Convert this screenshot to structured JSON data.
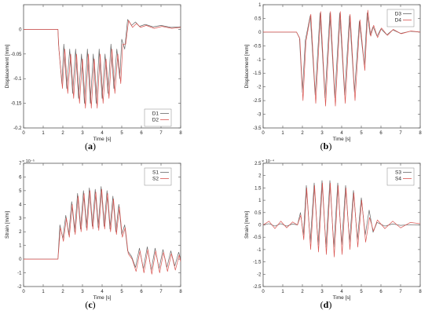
{
  "chart_data": [
    {
      "type": "line",
      "panel_label": "(a)",
      "panel_letter": "a",
      "xlabel": "Time [s]",
      "ylabel": "Displacement [mm]",
      "xlim": [
        0,
        8
      ],
      "ylim": [
        -0.2,
        0.05
      ],
      "xticks": [
        0,
        1,
        2,
        3,
        4,
        5,
        6,
        7,
        8
      ],
      "yticks": [
        -0.2,
        -0.15,
        -0.1,
        -0.05,
        0
      ],
      "yticklabels": [
        "-0.2",
        "-0.15",
        "-0.1",
        "-0.05",
        "0"
      ],
      "y_exponent": "",
      "grid": false,
      "legend_placement": "lower-right",
      "series": [
        {
          "name": "D1",
          "color": "#666666",
          "x": [
            0.0,
            1.75,
            1.78,
            1.95,
            2.05,
            2.2,
            2.35,
            2.5,
            2.65,
            2.8,
            2.95,
            3.1,
            3.25,
            3.4,
            3.55,
            3.7,
            3.85,
            4.0,
            4.15,
            4.3,
            4.45,
            4.6,
            4.75,
            4.9,
            5.0,
            5.15,
            5.3,
            5.5,
            5.7,
            5.9,
            6.2,
            6.6,
            7.0,
            7.5,
            8.0
          ],
          "y": [
            0.0,
            0.0,
            -0.03,
            -0.11,
            -0.03,
            -0.12,
            -0.04,
            -0.13,
            -0.04,
            -0.14,
            -0.05,
            -0.15,
            -0.04,
            -0.15,
            -0.05,
            -0.15,
            -0.04,
            -0.14,
            -0.05,
            -0.13,
            -0.03,
            -0.12,
            -0.04,
            -0.1,
            -0.02,
            -0.04,
            0.02,
            0.008,
            0.015,
            0.006,
            0.01,
            0.005,
            0.008,
            0.004,
            0.005
          ]
        },
        {
          "name": "D2",
          "color": "#d9534f",
          "x": [
            0.0,
            1.75,
            1.8,
            1.98,
            2.1,
            2.25,
            2.4,
            2.55,
            2.7,
            2.85,
            3.0,
            3.15,
            3.3,
            3.45,
            3.6,
            3.75,
            3.9,
            4.05,
            4.2,
            4.35,
            4.5,
            4.65,
            4.8,
            4.95,
            5.05,
            5.2,
            5.35,
            5.55,
            5.75,
            5.95,
            6.25,
            6.65,
            7.05,
            7.55,
            8.0
          ],
          "y": [
            0.0,
            0.0,
            -0.04,
            -0.12,
            -0.04,
            -0.13,
            -0.05,
            -0.14,
            -0.05,
            -0.15,
            -0.06,
            -0.16,
            -0.05,
            -0.16,
            -0.06,
            -0.16,
            -0.05,
            -0.15,
            -0.06,
            -0.14,
            -0.04,
            -0.13,
            -0.05,
            -0.11,
            -0.03,
            -0.03,
            0.018,
            0.004,
            0.012,
            0.004,
            0.008,
            0.002,
            0.006,
            0.002,
            0.004
          ]
        }
      ]
    },
    {
      "type": "line",
      "panel_label": "(b)",
      "panel_letter": "b",
      "xlabel": "Time [s]",
      "ylabel": "Displacement [mm]",
      "xlim": [
        0,
        8
      ],
      "ylim": [
        -3.5,
        1
      ],
      "xticks": [
        0,
        1,
        2,
        3,
        4,
        5,
        6,
        7,
        8
      ],
      "yticks": [
        -3.5,
        -3,
        -2.5,
        -2,
        -1.5,
        -1,
        -0.5,
        0,
        0.5,
        1
      ],
      "yticklabels": [
        "-3.5",
        "-3",
        "-2.5",
        "-2",
        "-1.5",
        "-1",
        "-0.5",
        "0",
        "0.5",
        "1"
      ],
      "y_exponent": "",
      "grid": false,
      "legend_placement": "top-right",
      "series": [
        {
          "name": "D3",
          "color": "#666666",
          "x": [
            0.0,
            1.7,
            1.85,
            2.0,
            2.15,
            2.4,
            2.65,
            2.9,
            3.15,
            3.4,
            3.65,
            3.9,
            4.15,
            4.4,
            4.65,
            4.9,
            5.15,
            5.3,
            5.45,
            5.6,
            5.8,
            6.0,
            6.3,
            6.6,
            7.0,
            7.5,
            8.0
          ],
          "y": [
            0.0,
            0.0,
            -0.2,
            -2.2,
            -0.3,
            0.6,
            -2.3,
            0.7,
            -2.4,
            0.7,
            -2.4,
            0.7,
            -2.3,
            0.6,
            -2.2,
            0.4,
            -1.2,
            0.7,
            -0.1,
            0.2,
            -0.15,
            0.12,
            -0.1,
            0.08,
            -0.05,
            0.03,
            0.0
          ]
        },
        {
          "name": "D4",
          "color": "#d9534f",
          "x": [
            0.0,
            1.7,
            1.87,
            2.03,
            2.18,
            2.43,
            2.68,
            2.93,
            3.18,
            3.43,
            3.68,
            3.93,
            4.18,
            4.43,
            4.68,
            4.93,
            5.18,
            5.33,
            5.48,
            5.63,
            5.83,
            6.03,
            6.33,
            6.63,
            7.03,
            7.53,
            8.0
          ],
          "y": [
            0.0,
            0.0,
            -0.25,
            -2.5,
            -0.35,
            0.65,
            -2.6,
            0.75,
            -2.7,
            0.75,
            -2.7,
            0.75,
            -2.6,
            0.65,
            -2.5,
            0.45,
            -1.4,
            0.8,
            -0.15,
            0.25,
            -0.2,
            0.15,
            -0.12,
            0.1,
            -0.06,
            0.04,
            0.0
          ]
        }
      ]
    },
    {
      "type": "line",
      "panel_label": "(c)",
      "panel_letter": "c",
      "xlabel": "Time [s]",
      "ylabel": "Strain [m/m]",
      "xlim": [
        0,
        8
      ],
      "ylim": [
        -2,
        7
      ],
      "xticks": [
        0,
        1,
        2,
        3,
        4,
        5,
        6,
        7,
        8
      ],
      "yticks": [
        -2,
        -1,
        0,
        1,
        2,
        3,
        4,
        5,
        6,
        7
      ],
      "yticklabels": [
        "-2",
        "-1",
        "0",
        "1",
        "2",
        "3",
        "4",
        "5",
        "6",
        "7"
      ],
      "y_exponent": "× 10⁻⁵",
      "grid": false,
      "legend_placement": "top-right",
      "series": [
        {
          "name": "S1",
          "color": "#666666",
          "x": [
            0.0,
            1.75,
            1.85,
            2.0,
            2.15,
            2.3,
            2.45,
            2.6,
            2.75,
            2.9,
            3.05,
            3.2,
            3.35,
            3.5,
            3.65,
            3.8,
            3.95,
            4.1,
            4.25,
            4.4,
            4.55,
            4.7,
            4.85,
            5.0,
            5.15,
            5.3,
            5.5,
            5.7,
            5.9,
            6.1,
            6.3,
            6.5,
            6.7,
            6.9,
            7.1,
            7.3,
            7.5,
            7.7,
            7.9,
            8.0
          ],
          "y": [
            0.0,
            0.0,
            2.5,
            1.5,
            3.2,
            1.8,
            4.2,
            2.0,
            4.8,
            2.2,
            5.0,
            2.3,
            5.2,
            2.4,
            5.1,
            2.3,
            5.3,
            2.4,
            5.0,
            2.2,
            4.6,
            2.0,
            4.0,
            1.8,
            2.5,
            0.6,
            0.2,
            -0.6,
            0.8,
            -0.7,
            0.9,
            -0.8,
            0.8,
            -0.7,
            0.7,
            -0.6,
            0.6,
            -0.5,
            0.5,
            0.0
          ]
        },
        {
          "name": "S2",
          "color": "#d9534f",
          "x": [
            0.0,
            1.75,
            1.88,
            2.03,
            2.18,
            2.33,
            2.48,
            2.63,
            2.78,
            2.93,
            3.08,
            3.23,
            3.38,
            3.53,
            3.68,
            3.83,
            3.98,
            4.13,
            4.28,
            4.43,
            4.58,
            4.73,
            4.88,
            5.03,
            5.18,
            5.33,
            5.53,
            5.73,
            5.93,
            6.13,
            6.33,
            6.53,
            6.73,
            6.93,
            7.13,
            7.33,
            7.53,
            7.73,
            7.93,
            8.0
          ],
          "y": [
            0.0,
            0.0,
            2.3,
            1.3,
            3.0,
            1.6,
            4.0,
            1.8,
            4.6,
            2.0,
            4.8,
            2.1,
            5.0,
            2.2,
            4.9,
            2.1,
            5.1,
            2.2,
            4.8,
            2.0,
            4.4,
            1.8,
            3.8,
            1.6,
            2.3,
            0.4,
            0.0,
            -0.9,
            0.6,
            -1.0,
            0.7,
            -1.1,
            0.6,
            -1.0,
            0.5,
            -0.9,
            0.4,
            -0.8,
            0.3,
            -0.2
          ]
        }
      ]
    },
    {
      "type": "line",
      "panel_label": "(d)",
      "panel_letter": "d",
      "xlabel": "Time [s]",
      "ylabel": "Strain [m/m]",
      "xlim": [
        0,
        8
      ],
      "ylim": [
        -2.5,
        2.5
      ],
      "xticks": [
        0,
        1,
        2,
        3,
        4,
        5,
        6,
        7,
        8
      ],
      "yticks": [
        -2.5,
        -2,
        -1.5,
        -1,
        -0.5,
        0,
        0.5,
        1,
        1.5,
        2,
        2.5
      ],
      "yticklabels": [
        "-2.5",
        "-2",
        "-1.5",
        "-1",
        "-0.5",
        "0",
        "0.5",
        "1",
        "1.5",
        "2",
        "2.5"
      ],
      "y_exponent": "× 10⁻⁴",
      "grid": false,
      "legend_placement": "top-right",
      "series": [
        {
          "name": "S3",
          "color": "#666666",
          "x": [
            0.0,
            0.3,
            0.6,
            0.9,
            1.2,
            1.5,
            1.75,
            1.9,
            2.05,
            2.2,
            2.4,
            2.6,
            2.8,
            3.0,
            3.2,
            3.4,
            3.6,
            3.8,
            4.0,
            4.2,
            4.4,
            4.6,
            4.8,
            5.0,
            5.2,
            5.4,
            5.6,
            5.8,
            6.2,
            6.6,
            7.0,
            7.5,
            8.0
          ],
          "y": [
            0.0,
            0.05,
            -0.05,
            0.05,
            -0.05,
            0.04,
            0.0,
            0.5,
            -0.4,
            1.6,
            -0.7,
            1.7,
            -0.8,
            1.8,
            -0.9,
            1.8,
            -0.9,
            1.7,
            -0.8,
            1.6,
            -0.7,
            1.4,
            -0.6,
            1.1,
            -0.4,
            0.6,
            -0.3,
            0.1,
            -0.05,
            0.04,
            -0.02,
            0.01,
            0.0
          ]
        },
        {
          "name": "S4",
          "color": "#d9534f",
          "x": [
            0.0,
            0.3,
            0.6,
            0.9,
            1.2,
            1.5,
            1.75,
            1.92,
            2.07,
            2.22,
            2.42,
            2.62,
            2.82,
            3.02,
            3.22,
            3.42,
            3.62,
            3.82,
            4.02,
            4.22,
            4.42,
            4.62,
            4.82,
            5.02,
            5.22,
            5.42,
            5.62,
            5.82,
            6.2,
            6.6,
            7.0,
            7.5,
            8.0
          ],
          "y": [
            0.0,
            0.15,
            -0.15,
            0.15,
            -0.12,
            0.12,
            0.0,
            0.4,
            -0.6,
            1.5,
            -1.0,
            1.6,
            -1.1,
            1.7,
            -1.2,
            1.7,
            -1.3,
            1.6,
            -1.2,
            1.5,
            -1.0,
            1.3,
            -0.9,
            1.0,
            -0.7,
            0.3,
            -0.25,
            0.2,
            -0.15,
            0.15,
            -0.12,
            0.1,
            0.05
          ]
        }
      ]
    }
  ]
}
